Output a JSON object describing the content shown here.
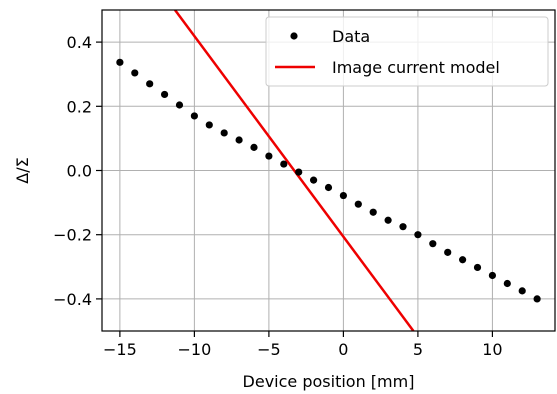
{
  "chart_data": {
    "type": "scatter",
    "xlabel": "Device position [mm]",
    "ylabel": "Δ/Σ",
    "xlim": [
      -16.2,
      14.2
    ],
    "ylim": [
      -0.5,
      0.5
    ],
    "xticks": [
      -15,
      -10,
      -5,
      0,
      5,
      10
    ],
    "xtick_labels": [
      "−15",
      "−10",
      "−5",
      "0",
      "5",
      "10"
    ],
    "yticks": [
      0.4,
      0.2,
      0.0,
      -0.2,
      -0.4
    ],
    "ytick_labels": [
      "0.4",
      "0.2",
      "0.0",
      "−0.2",
      "−0.4"
    ],
    "grid": true,
    "legend_position": "top-right",
    "series": [
      {
        "name": "Data",
        "kind": "scatter",
        "color": "#000000",
        "x": [
          -15,
          -14,
          -13,
          -12,
          -11,
          -10,
          -9,
          -8,
          -7,
          -6,
          -5,
          -4,
          -3,
          -2,
          -1,
          0,
          1,
          2,
          3,
          4,
          5,
          6,
          7,
          8,
          9,
          10,
          11,
          12,
          13
        ],
        "y": [
          0.337,
          0.304,
          0.27,
          0.237,
          0.204,
          0.17,
          0.142,
          0.117,
          0.095,
          0.072,
          0.045,
          0.02,
          -0.005,
          -0.03,
          -0.053,
          -0.078,
          -0.105,
          -0.13,
          -0.155,
          -0.175,
          -0.2,
          -0.228,
          -0.255,
          -0.278,
          -0.302,
          -0.327,
          -0.352,
          -0.375,
          -0.4
        ]
      },
      {
        "name": "Image current model",
        "kind": "line",
        "color": "#ee0000",
        "x": [
          -11.3,
          4.7
        ],
        "y": [
          0.5,
          -0.5
        ]
      }
    ]
  }
}
